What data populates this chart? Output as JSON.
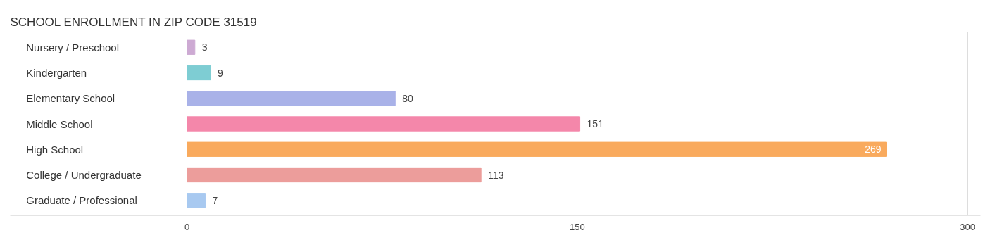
{
  "chart_data": {
    "type": "bar",
    "orientation": "horizontal",
    "title": "SCHOOL ENROLLMENT IN ZIP CODE 31519",
    "categories": [
      "Nursery / Preschool",
      "Kindergarten",
      "Elementary School",
      "Middle School",
      "High School",
      "College / Undergraduate",
      "Graduate / Professional"
    ],
    "values": [
      3,
      9,
      80,
      151,
      269,
      113,
      7
    ],
    "colors": [
      "#cdaad3",
      "#7ecdd3",
      "#a9b2e8",
      "#f487aa",
      "#f9aa5d",
      "#ec9d9b",
      "#a8c9f0"
    ],
    "xlim": [
      -68,
      305
    ],
    "xticks": [
      0,
      150,
      300
    ],
    "grid": "x",
    "data_labels": true
  }
}
